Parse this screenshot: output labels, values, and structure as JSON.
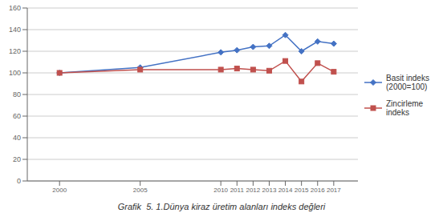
{
  "chart_data": {
    "type": "line",
    "title": "Grafik  5. 1.Dünya kiraz üretim alanları indeks değleri",
    "x": [
      2000,
      2005,
      2010,
      2011,
      2012,
      2013,
      2014,
      2015,
      2016,
      2017
    ],
    "series": [
      {
        "name": "Basit indeks\n(2000=100)",
        "color": "#4472C4",
        "marker": "diamond",
        "values": [
          100,
          105,
          119,
          121,
          124,
          125,
          135,
          120,
          129,
          127
        ]
      },
      {
        "name": "Zincirleme\nindeks",
        "color": "#C0504D",
        "marker": "square",
        "values": [
          100,
          103,
          103,
          104,
          103,
          102,
          111,
          92,
          109,
          101
        ]
      }
    ],
    "xlim": [
      1998,
      2018.5
    ],
    "xticks": [
      2000,
      2005,
      2010,
      2011,
      2012,
      2013,
      2014,
      2015,
      2016,
      2017
    ],
    "ylim": [
      0,
      160
    ],
    "yticks": [
      0,
      20,
      40,
      60,
      80,
      100,
      120,
      140,
      160
    ],
    "grid": "y",
    "legend": "right"
  }
}
